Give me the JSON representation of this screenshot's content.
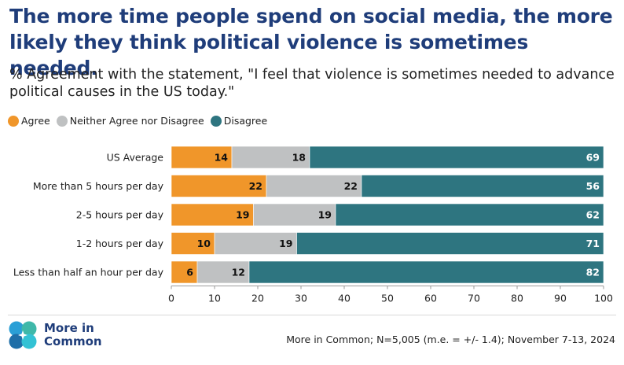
{
  "header": {
    "title": "The more time people spend on social media, the more likely they think political violence is sometimes needed.",
    "subtitle": "% Agreement with the statement, \"I feel that violence is sometimes needed to advance political causes in the US today.\""
  },
  "legend": [
    {
      "label": "Agree",
      "color": "#f0962a"
    },
    {
      "label": "Neither Agree nor Disagree",
      "color": "#bfc1c2"
    },
    {
      "label": "Disagree",
      "color": "#2e7580"
    }
  ],
  "chart_data": {
    "type": "bar",
    "orientation": "horizontal",
    "stacked": true,
    "categories": [
      "US Average",
      "More than 5 hours per day",
      "2-5 hours per day",
      "1-2 hours per day",
      "Less than half an hour per day"
    ],
    "series": [
      {
        "name": "Agree",
        "color": "#f0962a",
        "values": [
          14,
          22,
          19,
          10,
          6
        ]
      },
      {
        "name": "Neither Agree nor Disagree",
        "color": "#bfc1c2",
        "values": [
          18,
          22,
          19,
          19,
          12
        ]
      },
      {
        "name": "Disagree",
        "color": "#2e7580",
        "values": [
          69,
          56,
          62,
          71,
          82
        ]
      }
    ],
    "xlim": [
      0,
      100
    ],
    "xticks": [
      0,
      10,
      20,
      30,
      40,
      50,
      60,
      70,
      80,
      90,
      100
    ],
    "grid": false,
    "legend_position": "top-left"
  },
  "footer": {
    "logo_text_line1": "More in",
    "logo_text_line2": "Common",
    "source": "More in Common; N=5,005 (m.e. = +/- 1.4); November 7-13, 2024"
  }
}
